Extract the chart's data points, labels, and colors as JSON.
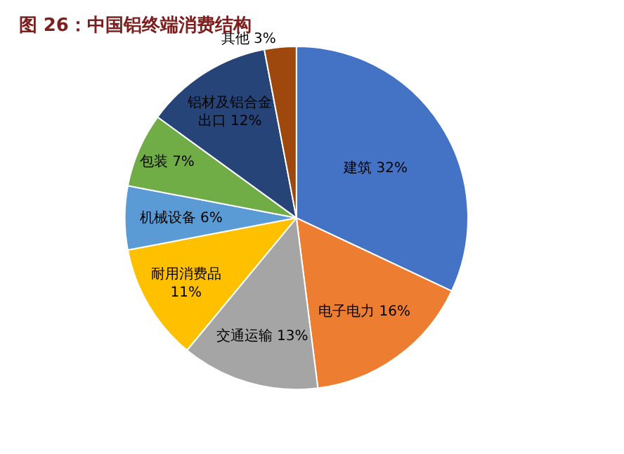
{
  "chart_data": {
    "type": "pie",
    "title": "图 26：中国铝终端消费结构",
    "categories": [
      "建筑",
      "电子电力",
      "交通运输",
      "耐用消费品",
      "机械设备",
      "包装",
      "铝材及铝合金出口",
      "其他"
    ],
    "values": [
      32,
      16,
      13,
      11,
      6,
      7,
      12,
      3
    ],
    "value_labels": [
      "32%",
      "16%",
      "13%",
      "11%",
      "6%",
      "7%",
      "12%",
      "3%"
    ],
    "colors": [
      "#4472c4",
      "#ed7d31",
      "#a5a5a5",
      "#ffc000",
      "#5b9bd5",
      "#70ad47",
      "#264478",
      "#9e480e"
    ],
    "legend": false
  }
}
